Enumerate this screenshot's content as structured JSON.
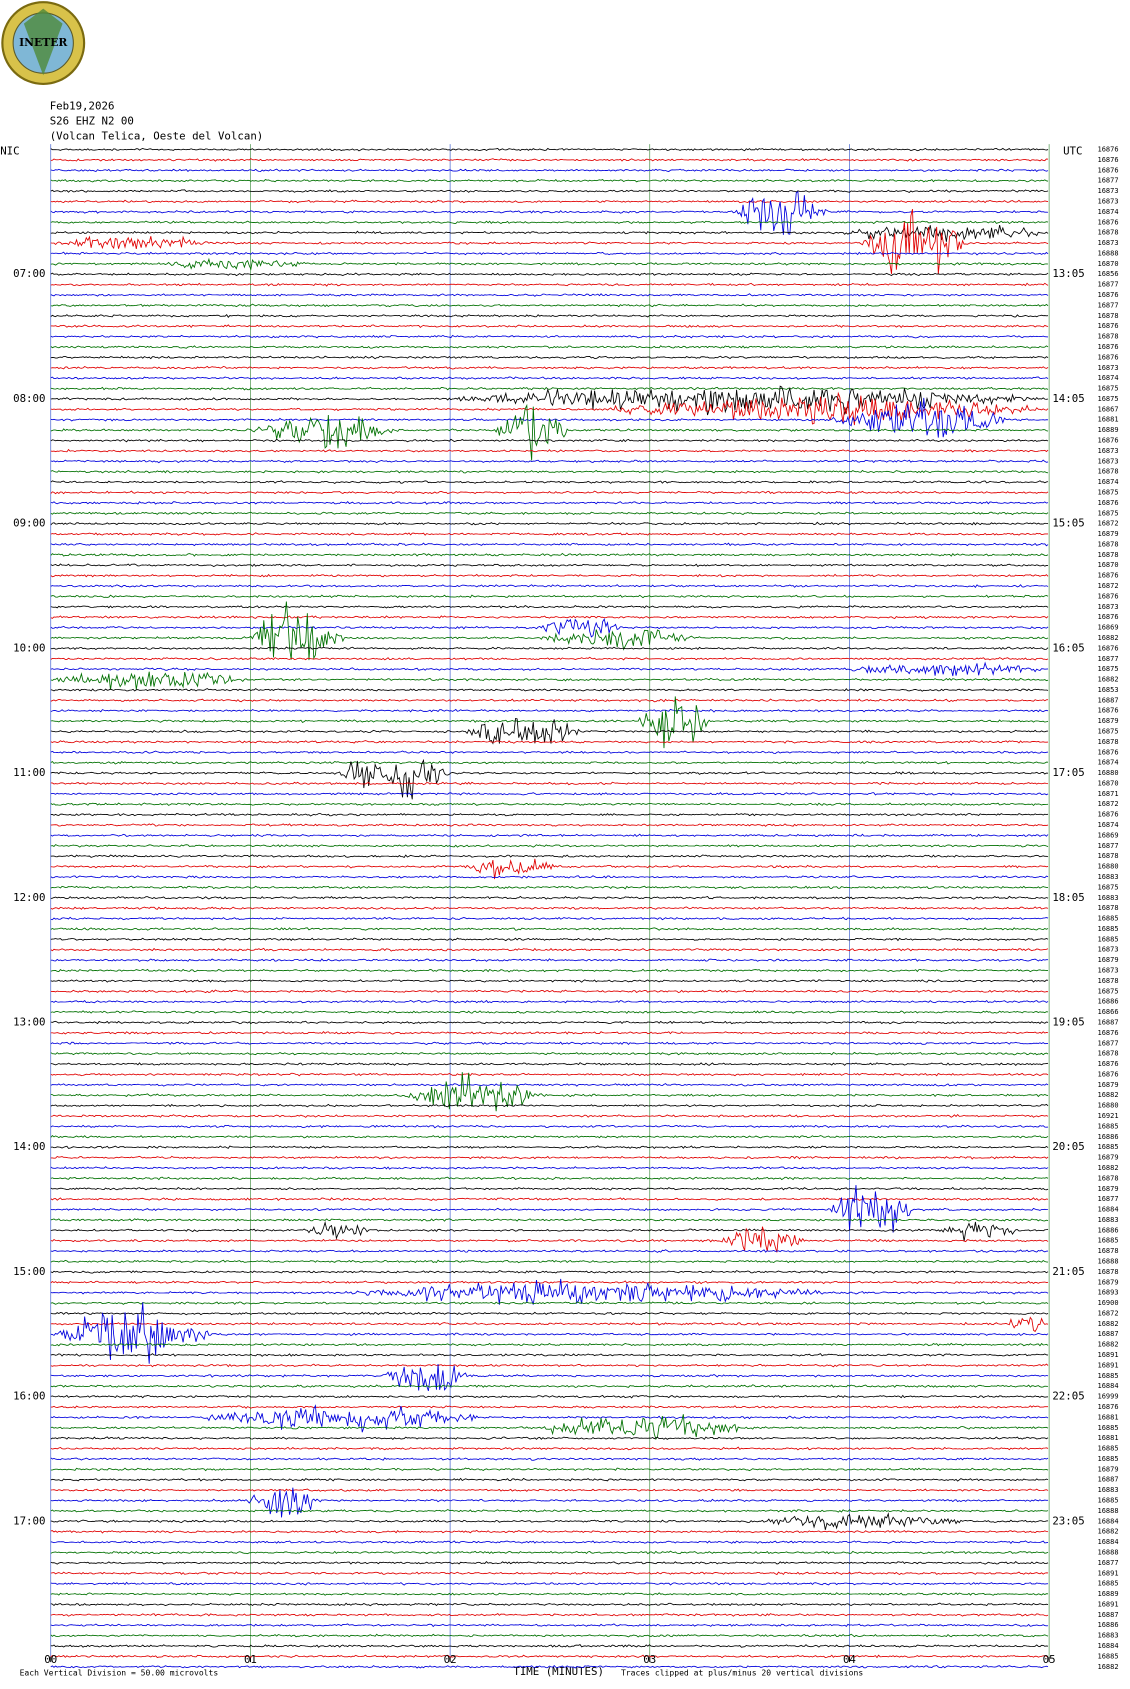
{
  "logo": "INETER",
  "header": {
    "date": "Feb19,2026",
    "station": "S26 EHZ N2 00",
    "location": "(Volcan Telica, Oeste del Volcan)"
  },
  "left_zone": "NIC",
  "right_zone": "UTC",
  "left_times": [
    "07:00",
    "08:00",
    "09:00",
    "10:00",
    "11:00",
    "12:00",
    "13:00",
    "14:00",
    "15:00",
    "16:00",
    "17:00"
  ],
  "right_times": [
    "13:05",
    "14:05",
    "15:05",
    "16:05",
    "17:05",
    "18:05",
    "19:05",
    "20:05",
    "21:05",
    "22:05",
    "23:05"
  ],
  "x_axis": {
    "ticks": [
      "00",
      "01",
      "02",
      "03",
      "04",
      "05"
    ],
    "label": "TIME (MINUTES)"
  },
  "footer": {
    "scale_note": "Each Vertical Division =   50.00 microvolts",
    "clip_note": "Traces clipped at plus/minus 20 vertical divisions"
  },
  "trace_values": [
    "16876",
    "16876",
    "16876",
    "16877",
    "16873",
    "16873",
    "16874",
    "16876",
    "16878",
    "16873",
    "16888",
    "16870",
    "16856",
    "16877",
    "16876",
    "16877",
    "16878",
    "16876",
    "16878",
    "16876",
    "16876",
    "16873",
    "16874",
    "16875",
    "16875",
    "16867",
    "16881",
    "16889",
    "16876",
    "16873",
    "16873",
    "16878",
    "16874",
    "16875",
    "16876",
    "16875",
    "16872",
    "16879",
    "16878",
    "16878",
    "16870",
    "16876",
    "16872",
    "16876",
    "16873",
    "16876",
    "16869",
    "16882",
    "16876",
    "16877",
    "16875",
    "16882",
    "16853",
    "16887",
    "16876",
    "16879",
    "16875",
    "16878",
    "16876",
    "16874",
    "16880",
    "16870",
    "16871",
    "16872",
    "16876",
    "16874",
    "16869",
    "16877",
    "16878",
    "16880",
    "16883",
    "16875",
    "16883",
    "16878",
    "16885",
    "16885",
    "16885",
    "16873",
    "16879",
    "16873",
    "16878",
    "16875",
    "16886",
    "16866",
    "16887",
    "16876",
    "16877",
    "16878",
    "16876",
    "16876",
    "16879",
    "16882",
    "16880",
    "16921",
    "16885",
    "16886",
    "16885",
    "16879",
    "16882",
    "16878",
    "16879",
    "16877",
    "16884",
    "16883",
    "16886",
    "16885",
    "16878",
    "16888",
    "16878",
    "16879",
    "16893",
    "16900",
    "16872",
    "16882",
    "16887",
    "16882",
    "16891",
    "16891",
    "16885",
    "16884",
    "16999",
    "16876",
    "16881",
    "16885",
    "16881",
    "16885",
    "16885",
    "16879",
    "16887",
    "16883",
    "16885",
    "16888",
    "16884",
    "16882",
    "16884",
    "16888",
    "16877",
    "16891",
    "16885",
    "16889",
    "16891",
    "16887",
    "16886",
    "16883",
    "16884",
    "16885",
    "16882"
  ]
}
